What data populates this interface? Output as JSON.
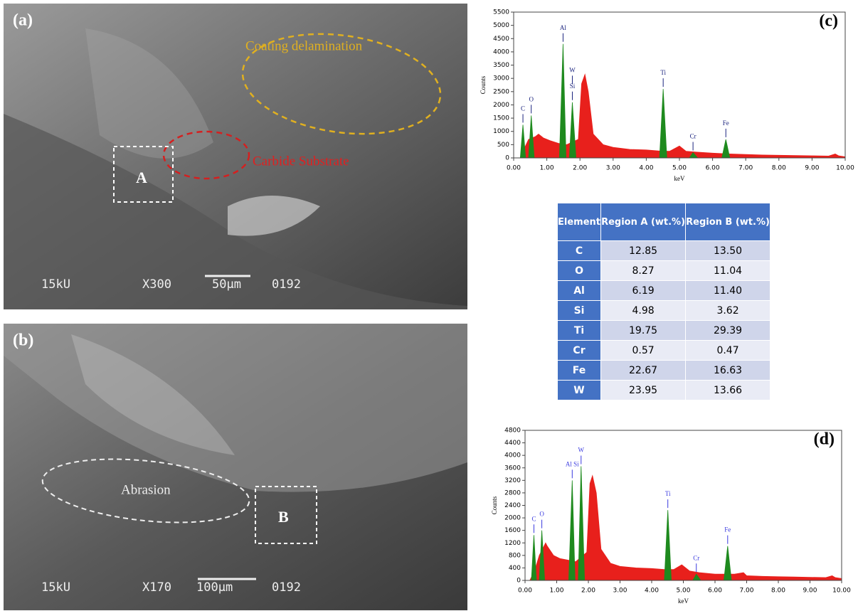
{
  "sem_images": [
    {
      "panel": "(a)",
      "labels": [
        "Coating delamination",
        "Carbide Substrate"
      ],
      "region": "A",
      "voltage": "15kU",
      "magnification": "X300",
      "scale": "50µm",
      "code": "0192"
    },
    {
      "panel": "(b)",
      "labels": [
        "Abrasion"
      ],
      "region": "B",
      "voltage": "15kU",
      "magnification": "X170",
      "scale": "100µm",
      "code": "0192"
    }
  ],
  "table": {
    "header": [
      "Element",
      "Region A (wt.%)",
      "Region B (wt.%)"
    ],
    "rows": [
      [
        "C",
        "12.85",
        "13.50"
      ],
      [
        "O",
        "8.27",
        "11.04"
      ],
      [
        "Al",
        "6.19",
        "11.40"
      ],
      [
        "Si",
        "4.98",
        "3.62"
      ],
      [
        "Ti",
        "19.75",
        "29.39"
      ],
      [
        "Cr",
        "0.57",
        "0.47"
      ],
      [
        "Fe",
        "22.67",
        "16.63"
      ],
      [
        "W",
        "23.95",
        "13.66"
      ]
    ]
  },
  "chart_data": [
    {
      "type": "area",
      "title": "(c)",
      "x_label": "keV",
      "y_label": "Counts",
      "xlim": [
        0,
        10
      ],
      "ylim": [
        0,
        5500
      ],
      "xticks": [
        {
          "value": 0,
          "label": "0.00"
        },
        {
          "value": 1,
          "label": "1.00"
        },
        {
          "value": 2,
          "label": "2.00"
        },
        {
          "value": 3,
          "label": "3.00"
        },
        {
          "value": 4,
          "label": "4.00"
        },
        {
          "value": 5,
          "label": "5.00"
        },
        {
          "value": 6,
          "label": "6.00"
        },
        {
          "value": 7,
          "label": "7.00"
        },
        {
          "value": 8,
          "label": "8.00"
        },
        {
          "value": 9,
          "label": "9.00"
        },
        {
          "value": 10,
          "label": "10.00"
        }
      ],
      "yticks": [
        0,
        500,
        1000,
        1500,
        2000,
        2500,
        3000,
        3500,
        4000,
        4500,
        5000,
        5500
      ],
      "annotation_color": "#1a237e",
      "series": [
        {
          "color": "#e8201c",
          "x": [
            0.2,
            0.3,
            0.45,
            0.65,
            0.75,
            0.9,
            1.1,
            1.35,
            1.6,
            1.95,
            2.05,
            2.15,
            2.25,
            2.4,
            2.7,
            3.0,
            3.5,
            4.0,
            4.4,
            4.7,
            5.0,
            5.2,
            5.5,
            6.0,
            6.5,
            7.0,
            7.5,
            8.0,
            8.5,
            9.0,
            9.5,
            9.7,
            9.8,
            10.0
          ],
          "values": [
            0,
            300,
            700,
            800,
            900,
            750,
            650,
            550,
            500,
            700,
            2800,
            3150,
            2500,
            900,
            500,
            400,
            320,
            300,
            260,
            250,
            450,
            250,
            220,
            180,
            150,
            130,
            110,
            100,
            90,
            80,
            70,
            150,
            80,
            40
          ]
        },
        {
          "color": "#1e8a1e",
          "x": [
            0.2,
            0.28,
            0.36,
            null,
            0.45,
            0.53,
            0.62,
            null,
            1.38,
            1.49,
            1.58,
            null,
            1.68,
            1.77,
            1.88,
            null,
            4.4,
            4.51,
            4.62,
            null,
            5.3,
            5.41,
            5.55,
            null,
            6.28,
            6.4,
            6.52
          ],
          "values": [
            0,
            1250,
            0,
            null,
            0,
            1600,
            0,
            null,
            0,
            4300,
            0,
            null,
            0,
            2100,
            0,
            null,
            0,
            2600,
            0,
            null,
            0,
            200,
            0,
            null,
            0,
            700,
            0
          ]
        }
      ],
      "annotations": [
        {
          "text": "C",
          "x": 0.28,
          "y": 1250
        },
        {
          "text": "O",
          "x": 0.53,
          "y": 1600
        },
        {
          "text": "Al",
          "x": 1.49,
          "y": 4300
        },
        {
          "text": "W",
          "x": 1.77,
          "y": 2700
        },
        {
          "text": "Si",
          "x": 1.77,
          "y": 2100
        },
        {
          "text": "Ti",
          "x": 4.51,
          "y": 2600
        },
        {
          "text": "Cr",
          "x": 5.41,
          "y": 200
        },
        {
          "text": "Fe",
          "x": 6.4,
          "y": 700
        }
      ]
    },
    {
      "type": "area",
      "title": "(d)",
      "x_label": "keV",
      "y_label": "Counts",
      "xlim": [
        0,
        10
      ],
      "ylim": [
        0,
        4800
      ],
      "xticks": [
        {
          "value": 0,
          "label": "0.00"
        },
        {
          "value": 1,
          "label": "1.00"
        },
        {
          "value": 2,
          "label": "2.00"
        },
        {
          "value": 3,
          "label": "3.00"
        },
        {
          "value": 4,
          "label": "4.00"
        },
        {
          "value": 5,
          "label": "5.00"
        },
        {
          "value": 6,
          "label": "6.00"
        },
        {
          "value": 7,
          "label": "7.00"
        },
        {
          "value": 8,
          "label": "8.00"
        },
        {
          "value": 9,
          "label": "9.00"
        },
        {
          "value": 10,
          "label": "10.00"
        }
      ],
      "yticks": [
        0,
        400,
        800,
        1200,
        1600,
        2000,
        2400,
        2800,
        3200,
        3600,
        4000,
        4400,
        4800
      ],
      "annotation_color": "#3a3adf",
      "series": [
        {
          "color": "#e8201c",
          "x": [
            0.15,
            0.3,
            0.45,
            0.65,
            0.7,
            0.9,
            1.1,
            1.35,
            1.6,
            1.95,
            2.05,
            2.13,
            2.25,
            2.4,
            2.7,
            3.0,
            3.5,
            4.0,
            4.4,
            4.7,
            4.95,
            5.2,
            5.5,
            6.0,
            6.6,
            6.9,
            7.0,
            7.5,
            8.0,
            8.5,
            9.0,
            9.5,
            9.7,
            9.8,
            10.0
          ],
          "values": [
            0,
            300,
            800,
            1200,
            1100,
            800,
            700,
            650,
            600,
            900,
            3100,
            3350,
            2800,
            1000,
            550,
            450,
            400,
            380,
            350,
            350,
            500,
            300,
            250,
            200,
            200,
            250,
            150,
            130,
            120,
            110,
            100,
            90,
            150,
            90,
            60
          ]
        },
        {
          "color": "#1e8a1e",
          "x": [
            0.2,
            0.28,
            0.36,
            null,
            0.45,
            0.53,
            0.62,
            null,
            1.38,
            1.49,
            1.58,
            null,
            1.68,
            1.77,
            1.88,
            null,
            4.4,
            4.51,
            4.62,
            null,
            5.3,
            5.41,
            5.55,
            null,
            6.28,
            6.4,
            6.52
          ],
          "values": [
            0,
            1450,
            0,
            null,
            0,
            1600,
            0,
            null,
            0,
            3200,
            0,
            null,
            0,
            3650,
            0,
            null,
            0,
            2250,
            0,
            null,
            0,
            200,
            0,
            null,
            0,
            1100,
            0
          ]
        }
      ],
      "annotations": [
        {
          "text": "C",
          "x": 0.28,
          "y": 1450
        },
        {
          "text": "O",
          "x": 0.53,
          "y": 1600
        },
        {
          "text": "Al Si",
          "x": 1.49,
          "y": 3200
        },
        {
          "text": "W",
          "x": 1.77,
          "y": 3650
        },
        {
          "text": "Ti",
          "x": 4.51,
          "y": 2250
        },
        {
          "text": "Cr",
          "x": 5.41,
          "y": 200
        },
        {
          "text": "Fe",
          "x": 6.4,
          "y": 1100
        }
      ]
    }
  ]
}
